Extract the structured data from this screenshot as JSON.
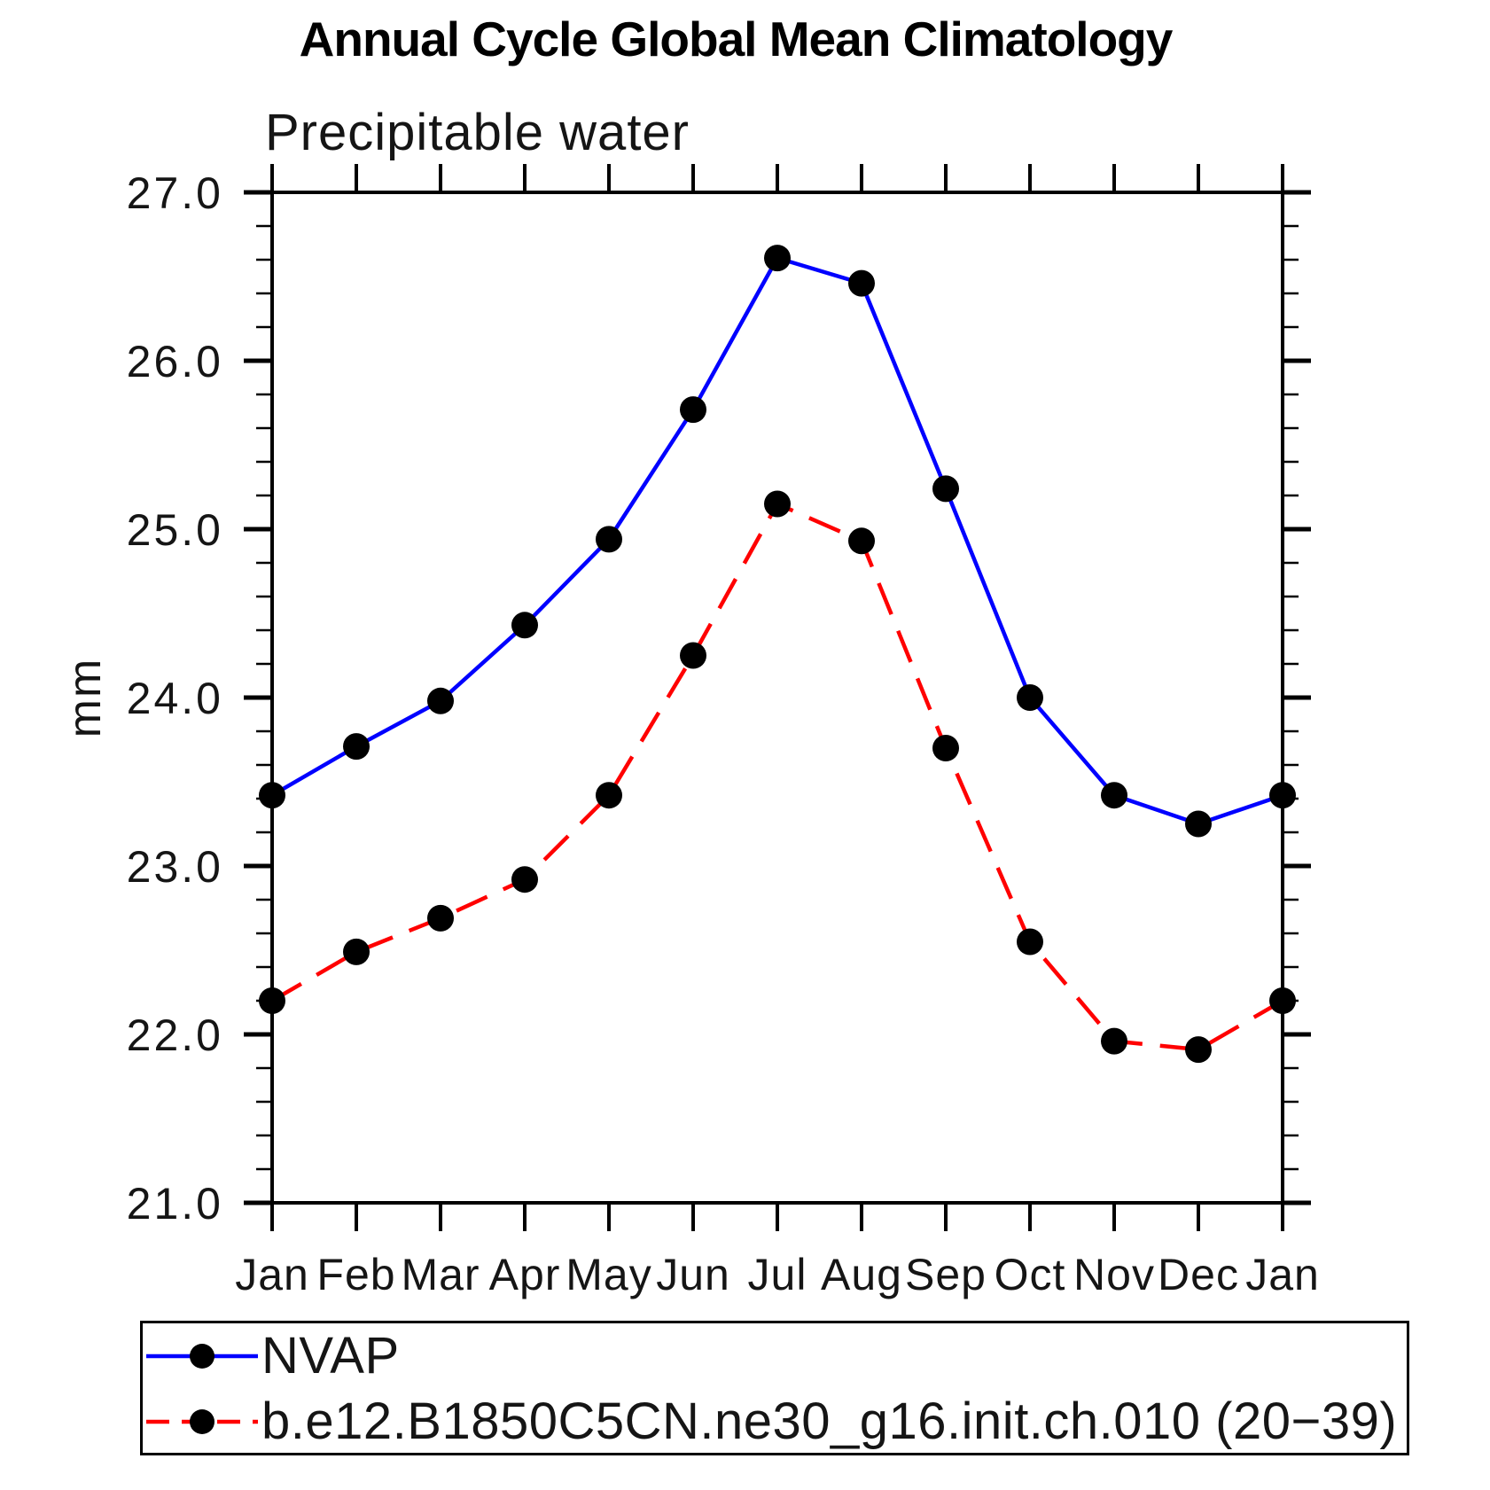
{
  "chart_data": {
    "type": "line",
    "title": "Annual Cycle Global Mean Climatology",
    "subtitle": "Precipitable water",
    "xlabel": "",
    "ylabel": "mm",
    "categories": [
      "Jan",
      "Feb",
      "Mar",
      "Apr",
      "May",
      "Jun",
      "Jul",
      "Aug",
      "Sep",
      "Oct",
      "Nov",
      "Dec",
      "Jan"
    ],
    "series": [
      {
        "name": "NVAP",
        "color": "#0000ff",
        "line_style": "solid",
        "marker": "filled-circle",
        "marker_color": "#000000",
        "values": [
          23.42,
          23.71,
          23.98,
          24.43,
          24.94,
          25.71,
          26.61,
          26.46,
          25.24,
          24.0,
          23.42,
          23.25,
          23.42
        ]
      },
      {
        "name": "b.e12.B1850C5CN.ne30_g16.init.ch.010 (20−39)",
        "color": "#ff0000",
        "line_style": "dashed",
        "marker": "filled-circle",
        "marker_color": "#000000",
        "values": [
          22.2,
          22.49,
          22.69,
          22.92,
          23.42,
          24.25,
          25.15,
          24.93,
          23.7,
          22.55,
          21.96,
          21.91,
          22.2
        ]
      }
    ],
    "ylim": [
      21.0,
      27.0
    ],
    "ytick_major": 1.0,
    "ytick_minor": 0.2,
    "ytick_labels": [
      "21.0",
      "22.0",
      "23.0",
      "24.0",
      "25.0",
      "26.0",
      "27.0"
    ],
    "axis_color": "#000000",
    "grid": false,
    "frame": true,
    "legend_position": "bottom-left-box"
  }
}
